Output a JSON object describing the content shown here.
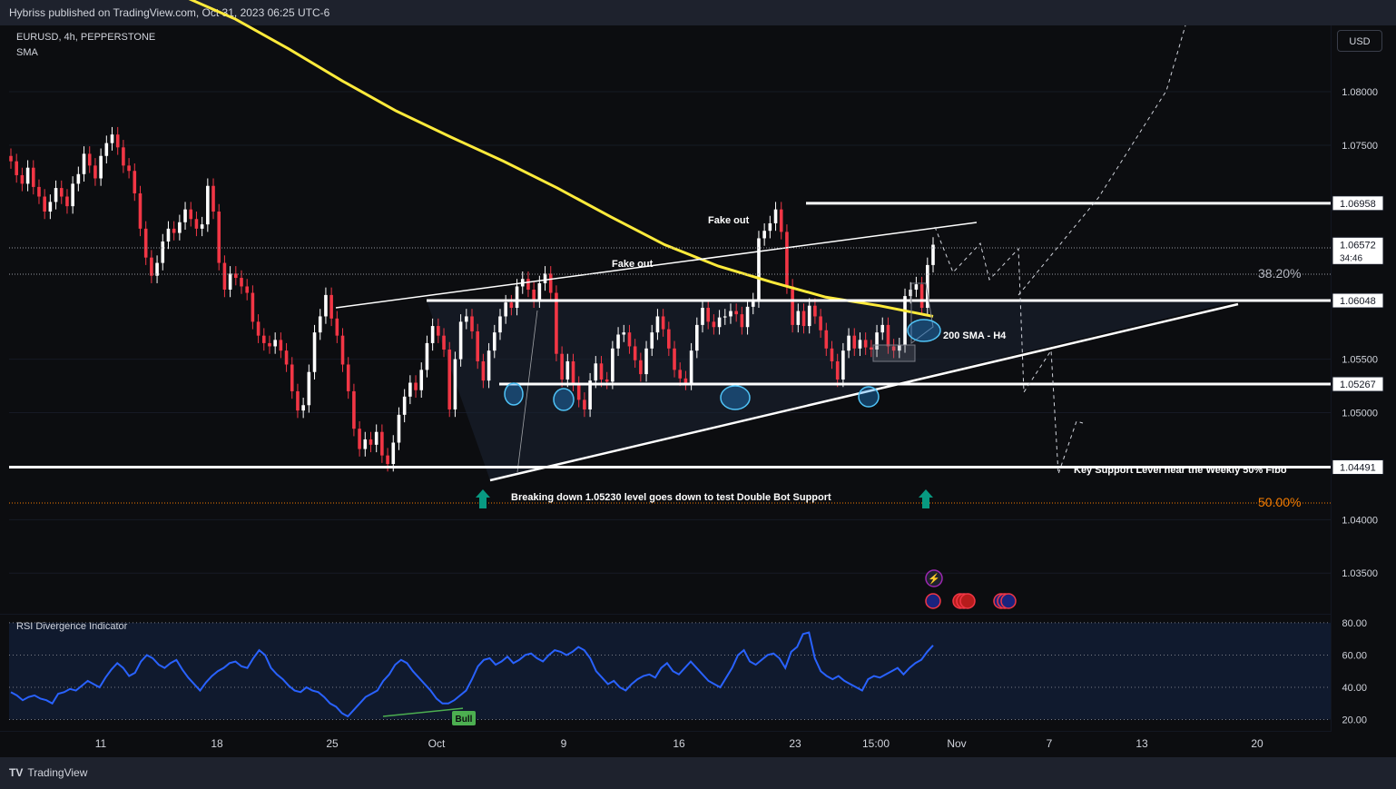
{
  "header": {
    "publisher": "Hybriss published on TradingView.com, Oct 31, 2023 06:25 UTC-6"
  },
  "symbol": {
    "title": "EURUSD, 4h, PEPPERSTONE",
    "indicator": "SMA"
  },
  "currency_button": "USD",
  "rsi_title": "RSI Divergence Indicator",
  "footer": {
    "brand": "TradingView"
  },
  "colors": {
    "up": "#ffffff",
    "down": "#f23645",
    "sma": "#ffeb3b",
    "rsi": "#2962ff",
    "support_arrow": "#089981",
    "fib": "#f57c00",
    "background": "#0c0d10"
  },
  "icons": [
    "lightning-event-icon",
    "eu-flag-icon",
    "us-flag-icon"
  ],
  "chart_data": [
    {
      "type": "candlestick",
      "title": "EURUSD, 4h, PEPPERSTONE",
      "y_ticks": [
        "1.08000",
        "1.07500",
        "1.05500",
        "1.05000",
        "1.04000",
        "1.03500"
      ],
      "x_ticks": [
        "11",
        "18",
        "25",
        "Oct",
        "9",
        "16",
        "23",
        "15:00",
        "Nov",
        "7",
        "13",
        "20"
      ],
      "ylim": [
        1.0312,
        1.0862
      ],
      "price_labels": [
        {
          "label": "1.06958",
          "value": 1.06958
        },
        {
          "label": "1.06572",
          "value": 1.06572,
          "countdown": "34:46"
        },
        {
          "label": "1.06048",
          "value": 1.06048
        },
        {
          "label": "1.05267",
          "value": 1.05267
        },
        {
          "label": "1.04491",
          "value": 1.04491
        }
      ],
      "close_series": [
        1.0735,
        1.0722,
        1.0714,
        1.0729,
        1.0711,
        1.0702,
        1.0688,
        1.0697,
        1.071,
        1.0702,
        1.0693,
        1.0714,
        1.0723,
        1.0742,
        1.0731,
        1.0719,
        1.074,
        1.0752,
        1.076,
        1.0748,
        1.0731,
        1.0726,
        1.0705,
        1.0672,
        1.0645,
        1.0628,
        1.064,
        1.066,
        1.0672,
        1.0668,
        1.0678,
        1.069,
        1.0681,
        1.0672,
        1.0676,
        1.0712,
        1.0688,
        1.064,
        1.0615,
        1.063,
        1.0626,
        1.0618,
        1.0612,
        1.0585,
        1.0572,
        1.0565,
        1.0562,
        1.0568,
        1.0558,
        1.0545,
        1.052,
        1.0502,
        1.0507,
        1.0538,
        1.0575,
        1.059,
        1.061,
        1.0588,
        1.0572,
        1.0545,
        1.052,
        1.0485,
        1.0466,
        1.0475,
        1.047,
        1.0482,
        1.046,
        1.0452,
        1.0472,
        1.0498,
        1.0515,
        1.0528,
        1.0521,
        1.054,
        1.0565,
        1.0581,
        1.0572,
        1.0559,
        1.0503,
        1.055,
        1.0585,
        1.059,
        1.0576,
        1.0548,
        1.053,
        1.0558,
        1.0575,
        1.059,
        1.0603,
        1.0598,
        1.0618,
        1.0625,
        1.0615,
        1.0605,
        1.0621,
        1.063,
        1.0612,
        1.0555,
        1.0531,
        1.0548,
        1.0527,
        1.0512,
        1.0503,
        1.053,
        1.0546,
        1.0531,
        1.0529,
        1.056,
        1.0573,
        1.0575,
        1.0562,
        1.0549,
        1.0536,
        1.056,
        1.0575,
        1.059,
        1.0578,
        1.056,
        1.054,
        1.0532,
        1.0528,
        1.0558,
        1.0582,
        1.0598,
        1.0585,
        1.058,
        1.0589,
        1.059,
        1.0595,
        1.0592,
        1.058,
        1.0599,
        1.0605,
        1.0663,
        1.067,
        1.0677,
        1.069,
        1.0669,
        1.0618,
        1.0582,
        1.0595,
        1.0581,
        1.06,
        1.059,
        1.0577,
        1.056,
        1.0548,
        1.0531,
        1.0558,
        1.0572,
        1.056,
        1.0568,
        1.0561,
        1.0559,
        1.0575,
        1.0582,
        1.0562,
        1.0558,
        1.0563,
        1.0609,
        1.0615,
        1.062,
        1.0598,
        1.0638,
        1.0657
      ],
      "sma_200": [
        1.089,
        1.0868,
        1.084,
        1.081,
        1.0782,
        1.0758,
        1.0735,
        1.071,
        1.0683,
        1.0657,
        1.0637,
        1.0622,
        1.0608,
        1.06,
        1.059
      ],
      "levels": [
        {
          "name": "resistance",
          "value": 1.06958
        },
        {
          "name": "range-top",
          "value": 1.06048
        },
        {
          "name": "range-bottom",
          "value": 1.05267
        },
        {
          "name": "double-bottom-support",
          "value": 1.04491
        }
      ],
      "fibonacci": [
        {
          "label": "38.20%",
          "value": 1.064
        },
        {
          "label": "50.00%",
          "value": 1.0436
        }
      ],
      "annotations": [
        "Fake out",
        "Fake out",
        "200 SMA - H4",
        "Key Support Level near the Weekly 50% Fibo",
        "Breaking down 1.05230 level goes down to test Double Bot Support"
      ]
    },
    {
      "type": "line",
      "title": "RSI Divergence Indicator",
      "y_ticks": [
        "80.00",
        "60.00",
        "40.00",
        "20.00"
      ],
      "ylim": [
        13,
        85
      ],
      "values": [
        37,
        35,
        32,
        34,
        35,
        33,
        32,
        30,
        36,
        37,
        39,
        38,
        41,
        44,
        42,
        40,
        46,
        51,
        55,
        52,
        47,
        49,
        56,
        60,
        58,
        54,
        52,
        55,
        57,
        51,
        46,
        42,
        38,
        43,
        47,
        50,
        52,
        55,
        56,
        53,
        52,
        58,
        63,
        60,
        52,
        48,
        45,
        41,
        38,
        37,
        40,
        38,
        37,
        34,
        30,
        28,
        24,
        22,
        26,
        30,
        34,
        36,
        38,
        44,
        48,
        54,
        57,
        55,
        50,
        46,
        42,
        38,
        33,
        30,
        30,
        32,
        35,
        38,
        45,
        53,
        57,
        58,
        54,
        56,
        59,
        55,
        57,
        60,
        61,
        58,
        56,
        60,
        63,
        62,
        60,
        62,
        65,
        63,
        58,
        50,
        46,
        42,
        44,
        40,
        38,
        42,
        45,
        47,
        48,
        46,
        52,
        55,
        50,
        48,
        52,
        56,
        52,
        48,
        44,
        42,
        40,
        46,
        52,
        60,
        63,
        56,
        54,
        57,
        60,
        61,
        58,
        52,
        62,
        65,
        73,
        74,
        58,
        50,
        47,
        45,
        47,
        44,
        42,
        40,
        38,
        45,
        47,
        46,
        48,
        50,
        52,
        48,
        52,
        55,
        57,
        62,
        66
      ],
      "divergence_label": "Bull"
    }
  ]
}
